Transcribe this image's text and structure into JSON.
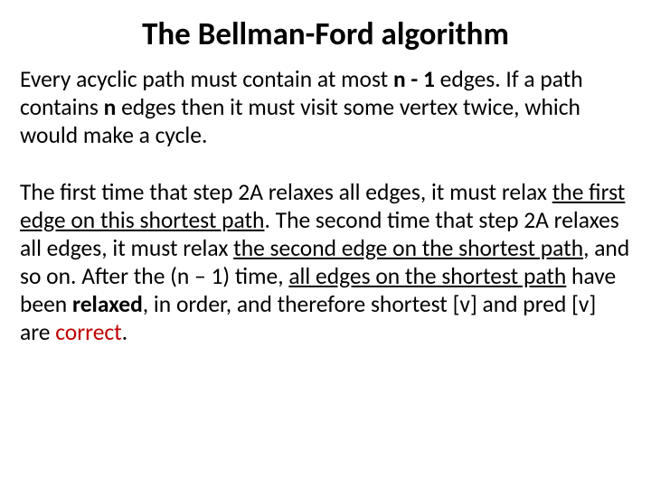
{
  "colors": {
    "background": "#ffffff",
    "text": "#000000",
    "highlight": "#c00000"
  },
  "typography": {
    "title_fontsize": 35,
    "title_weight": 700,
    "body_fontsize": 25.5,
    "body_line_height": 1.22,
    "font_family": "Calibri, Arial, sans-serif"
  },
  "title": "The Bellman-Ford algorithm",
  "p1": {
    "t1": "Every acyclic path must contain at most ",
    "b1": "n - 1",
    "t2": " edges. If a path contains ",
    "b2": "n",
    "t3": " edges then it must visit some vertex twice, which would make a cycle."
  },
  "p2": {
    "t1": "The first time that step 2A relaxes all edges, it must relax ",
    "u1": "the first edge on this shortest path",
    "t2": ". The second time that step 2A relaxes all edges, it must relax ",
    "u2": "the second edge on the shortest path",
    "t3": ", and so on. After the (n – 1) time, ",
    "u3": "all edges on the shortest path",
    "t4": " have been ",
    "b1": "relaxed",
    "t5": ", in order, and therefore shortest [v] and pred [v] are ",
    "hl": "correct",
    "t6": "."
  }
}
